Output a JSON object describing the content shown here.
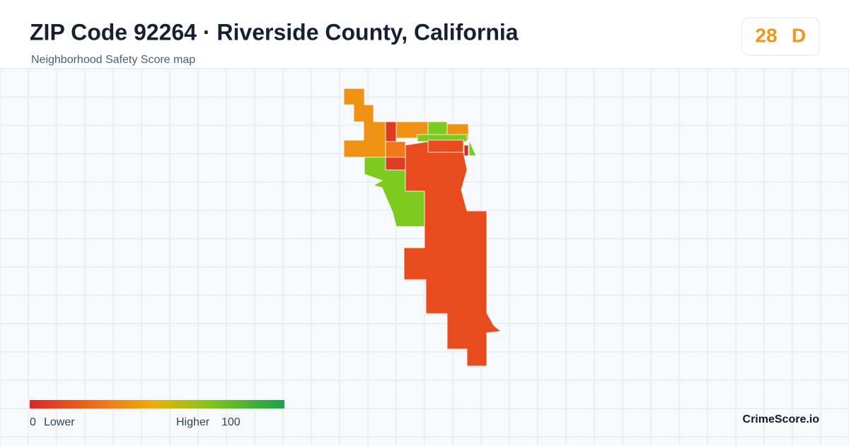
{
  "header": {
    "title": "ZIP Code 92264 · Riverside County, California",
    "subtitle": "Neighborhood Safety Score map"
  },
  "score": {
    "value": 28,
    "grade": "D"
  },
  "legend": {
    "min": 0,
    "min_label": "Lower",
    "max_label": "Higher",
    "max": 100
  },
  "brand": "CrimeScore.io"
}
